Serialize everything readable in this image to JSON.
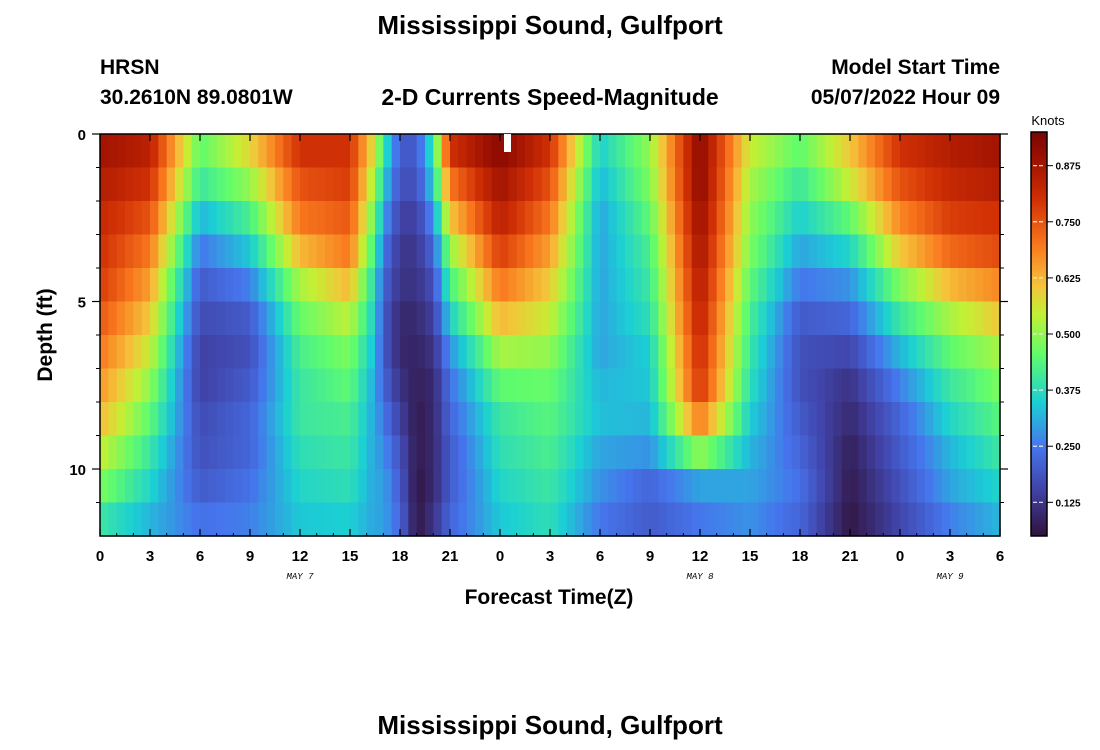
{
  "header": {
    "title": "Mississippi Sound, Gulfport",
    "station_code": "HRSN",
    "coordinates": "30.2610N  89.0801W",
    "subtitle": "2-D Currents Speed-Magnitude",
    "model_start_label": "Model Start Time",
    "model_start_value": "05/07/2022 Hour 09"
  },
  "footer": {
    "title": "Mississippi Sound, Gulfport"
  },
  "chart_data": {
    "type": "heatmap",
    "title": "Mississippi Sound, Gulfport",
    "subtitle": "2-D Currents Speed-Magnitude",
    "xlabel": "Forecast Time(Z)",
    "ylabel": "Depth (ft)",
    "x_tick_labels": [
      "0",
      "3",
      "6",
      "9",
      "12",
      "15",
      "18",
      "21",
      "0",
      "3",
      "6",
      "9",
      "12",
      "15",
      "18",
      "21",
      "0",
      "3",
      "6"
    ],
    "x_date_labels": [
      {
        "label": "MAY 7",
        "tick_index": 4
      },
      {
        "label": "MAY 8",
        "tick_index": 12
      },
      {
        "label": "MAY 9",
        "tick_index": 17
      }
    ],
    "y_tick_labels": [
      "0",
      "5",
      "10"
    ],
    "ylim": [
      0,
      12
    ],
    "colorbar": {
      "label": "Knots",
      "range": [
        0.05,
        0.95
      ],
      "ticks": [
        "0.125",
        "0.250",
        "0.375",
        "0.500",
        "0.625",
        "0.750",
        "0.875"
      ]
    },
    "depths_ft": [
      0.5,
      1.5,
      2.5,
      3.5,
      4.5,
      5.5,
      6.5,
      7.5,
      8.5,
      9.5,
      10.5,
      11.5
    ],
    "time_hours_from_may7_00z": [
      0,
      3,
      6,
      9,
      12,
      15,
      16.5,
      17,
      18,
      19,
      20,
      21,
      24,
      27,
      30,
      33,
      36,
      39,
      42,
      45,
      48,
      51,
      54
    ],
    "speed_knots": [
      [
        0.88,
        0.84,
        0.45,
        0.58,
        0.8,
        0.8,
        0.55,
        0.4,
        0.2,
        0.2,
        0.4,
        0.8,
        0.92,
        0.8,
        0.35,
        0.5,
        0.92,
        0.55,
        0.45,
        0.6,
        0.8,
        0.85,
        0.88
      ],
      [
        0.85,
        0.8,
        0.4,
        0.5,
        0.75,
        0.78,
        0.5,
        0.35,
        0.18,
        0.18,
        0.35,
        0.7,
        0.88,
        0.75,
        0.32,
        0.48,
        0.92,
        0.52,
        0.4,
        0.55,
        0.75,
        0.82,
        0.85
      ],
      [
        0.82,
        0.75,
        0.32,
        0.42,
        0.7,
        0.74,
        0.45,
        0.3,
        0.15,
        0.15,
        0.28,
        0.6,
        0.84,
        0.7,
        0.3,
        0.45,
        0.9,
        0.5,
        0.35,
        0.45,
        0.68,
        0.78,
        0.8
      ],
      [
        0.8,
        0.7,
        0.25,
        0.34,
        0.62,
        0.7,
        0.4,
        0.25,
        0.13,
        0.13,
        0.22,
        0.5,
        0.78,
        0.65,
        0.3,
        0.42,
        0.88,
        0.48,
        0.3,
        0.36,
        0.6,
        0.72,
        0.76
      ],
      [
        0.78,
        0.65,
        0.2,
        0.26,
        0.52,
        0.62,
        0.36,
        0.22,
        0.12,
        0.12,
        0.18,
        0.42,
        0.7,
        0.6,
        0.3,
        0.4,
        0.86,
        0.45,
        0.25,
        0.28,
        0.48,
        0.62,
        0.68
      ],
      [
        0.74,
        0.6,
        0.17,
        0.2,
        0.46,
        0.54,
        0.34,
        0.2,
        0.1,
        0.1,
        0.15,
        0.35,
        0.62,
        0.55,
        0.3,
        0.38,
        0.84,
        0.42,
        0.2,
        0.22,
        0.4,
        0.52,
        0.6
      ],
      [
        0.7,
        0.55,
        0.15,
        0.18,
        0.42,
        0.48,
        0.32,
        0.2,
        0.1,
        0.09,
        0.12,
        0.28,
        0.52,
        0.5,
        0.3,
        0.35,
        0.82,
        0.4,
        0.18,
        0.16,
        0.32,
        0.45,
        0.52
      ],
      [
        0.66,
        0.5,
        0.15,
        0.2,
        0.4,
        0.45,
        0.3,
        0.22,
        0.12,
        0.08,
        0.1,
        0.24,
        0.45,
        0.46,
        0.32,
        0.34,
        0.8,
        0.38,
        0.18,
        0.12,
        0.26,
        0.4,
        0.48
      ],
      [
        0.62,
        0.45,
        0.17,
        0.22,
        0.4,
        0.42,
        0.3,
        0.25,
        0.15,
        0.07,
        0.1,
        0.22,
        0.4,
        0.44,
        0.33,
        0.32,
        0.7,
        0.35,
        0.2,
        0.1,
        0.22,
        0.36,
        0.44
      ],
      [
        0.55,
        0.4,
        0.18,
        0.22,
        0.38,
        0.4,
        0.3,
        0.28,
        0.18,
        0.07,
        0.1,
        0.2,
        0.38,
        0.42,
        0.3,
        0.28,
        0.5,
        0.32,
        0.22,
        0.08,
        0.2,
        0.32,
        0.4
      ],
      [
        0.48,
        0.36,
        0.2,
        0.24,
        0.36,
        0.38,
        0.3,
        0.3,
        0.2,
        0.06,
        0.1,
        0.2,
        0.36,
        0.4,
        0.28,
        0.22,
        0.3,
        0.3,
        0.24,
        0.07,
        0.18,
        0.3,
        0.36
      ],
      [
        0.4,
        0.32,
        0.24,
        0.26,
        0.34,
        0.35,
        0.3,
        0.3,
        0.22,
        0.06,
        0.12,
        0.22,
        0.34,
        0.38,
        0.25,
        0.2,
        0.25,
        0.28,
        0.22,
        0.06,
        0.16,
        0.26,
        0.32
      ]
    ]
  }
}
